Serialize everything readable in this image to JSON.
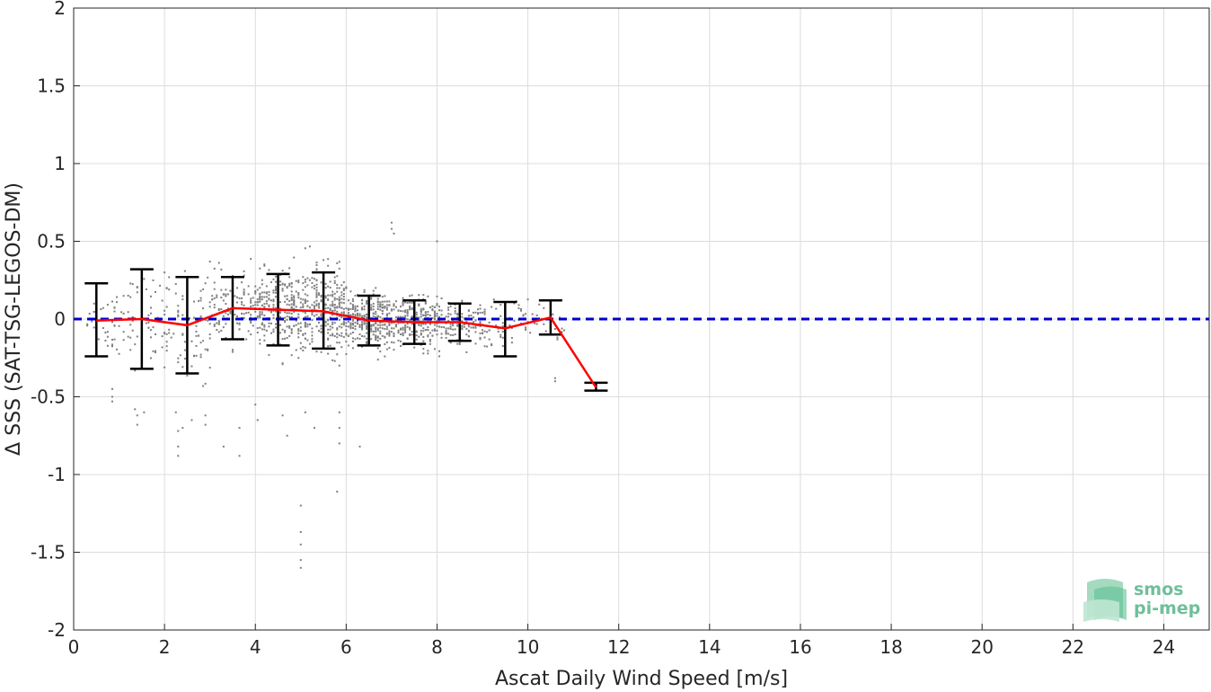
{
  "chart_data": {
    "type": "scatter",
    "title": "",
    "xlabel": "Ascat Daily Wind Speed [m/s]",
    "ylabel": "Δ SSS (SAT-TSG-LEGOS-DM)",
    "xlim": [
      0,
      25
    ],
    "ylim": [
      -2,
      2
    ],
    "xticks": [
      0,
      2,
      4,
      6,
      8,
      10,
      12,
      14,
      16,
      18,
      20,
      22,
      24
    ],
    "yticks": [
      2,
      1.5,
      1,
      0.5,
      0,
      -0.5,
      -1,
      -1.5,
      -2
    ],
    "ytick_labels": [
      "2",
      "1.5",
      "1",
      "0.5",
      "0",
      "-0.5",
      "-1",
      "-1.5",
      "-2"
    ],
    "grid": true,
    "reference_line": {
      "y": 0,
      "color": "#0000cc",
      "style": "dashed"
    },
    "bin_mean": {
      "color": "#ff0000",
      "x": [
        0.5,
        1.5,
        2.5,
        3.5,
        4.5,
        5.5,
        6.5,
        7.5,
        8.5,
        9.5,
        10.5,
        11.5
      ],
      "y": [
        -0.01,
        0.0,
        -0.04,
        0.07,
        0.06,
        0.05,
        -0.01,
        -0.02,
        -0.02,
        -0.06,
        0.01,
        -0.44
      ]
    },
    "error_bars": {
      "color": "#000000",
      "x": [
        0.5,
        1.5,
        2.5,
        3.5,
        4.5,
        5.5,
        6.5,
        7.5,
        8.5,
        9.5,
        10.5,
        11.5
      ],
      "upper": [
        0.23,
        0.32,
        0.27,
        0.27,
        0.29,
        0.3,
        0.15,
        0.12,
        0.1,
        0.11,
        0.12,
        -0.41
      ],
      "lower": [
        -0.24,
        -0.32,
        -0.35,
        -0.13,
        -0.17,
        -0.19,
        -0.17,
        -0.16,
        -0.14,
        -0.24,
        -0.1,
        -0.46
      ]
    },
    "scatter_points": {
      "color": "#808080",
      "description_bins": [
        {
          "x_range": [
            0.3,
            1.0
          ],
          "y_center": 0.0,
          "y_spread": 0.2
        },
        {
          "x_range": [
            1.0,
            2.0
          ],
          "y_center": 0.0,
          "y_spread": 0.25
        },
        {
          "x_range": [
            2.0,
            3.0
          ],
          "y_center": -0.05,
          "y_spread": 0.3
        },
        {
          "x_range": [
            3.0,
            4.0
          ],
          "y_center": 0.07,
          "y_spread": 0.2
        },
        {
          "x_range": [
            4.0,
            5.0
          ],
          "y_center": 0.06,
          "y_spread": 0.22
        },
        {
          "x_range": [
            5.0,
            6.0
          ],
          "y_center": 0.05,
          "y_spread": 0.24
        },
        {
          "x_range": [
            6.0,
            7.0
          ],
          "y_center": -0.01,
          "y_spread": 0.16
        },
        {
          "x_range": [
            7.0,
            8.0
          ],
          "y_center": -0.02,
          "y_spread": 0.14
        },
        {
          "x_range": [
            8.0,
            9.0
          ],
          "y_center": -0.02,
          "y_spread": 0.12
        },
        {
          "x_range": [
            9.0,
            10.0
          ],
          "y_center": -0.06,
          "y_spread": 0.17
        },
        {
          "x_range": [
            10.0,
            10.9
          ],
          "y_center": 0.01,
          "y_spread": 0.11
        }
      ],
      "outliers": [
        [
          0.85,
          -0.45
        ],
        [
          0.85,
          -0.5
        ],
        [
          0.85,
          -0.53
        ],
        [
          1.35,
          -0.58
        ],
        [
          1.4,
          -0.62
        ],
        [
          1.4,
          -0.68
        ],
        [
          1.55,
          -0.6
        ],
        [
          2.25,
          -0.6
        ],
        [
          2.3,
          -0.72
        ],
        [
          2.3,
          -0.82
        ],
        [
          2.3,
          -0.88
        ],
        [
          2.4,
          -0.7
        ],
        [
          2.6,
          -0.65
        ],
        [
          2.9,
          -0.68
        ],
        [
          2.9,
          -0.62
        ],
        [
          3.3,
          -0.82
        ],
        [
          3.65,
          -0.88
        ],
        [
          3.65,
          -0.7
        ],
        [
          4.0,
          -0.55
        ],
        [
          4.05,
          -0.65
        ],
        [
          4.6,
          -0.62
        ],
        [
          4.7,
          -0.75
        ],
        [
          5.0,
          -1.2
        ],
        [
          5.0,
          -1.37
        ],
        [
          5.0,
          -1.45
        ],
        [
          5.0,
          -1.55
        ],
        [
          5.0,
          -1.6
        ],
        [
          5.1,
          -0.6
        ],
        [
          5.3,
          -0.7
        ],
        [
          5.8,
          -1.11
        ],
        [
          5.85,
          -0.8
        ],
        [
          5.85,
          -0.7
        ],
        [
          5.85,
          -0.6
        ],
        [
          6.3,
          -0.82
        ],
        [
          7.0,
          0.62
        ],
        [
          7.0,
          0.58
        ],
        [
          7.05,
          0.55
        ],
        [
          8.0,
          0.5
        ],
        [
          10.6,
          -0.38
        ],
        [
          10.6,
          -0.4
        ],
        [
          11.5,
          -0.42
        ],
        [
          11.5,
          -0.45
        ]
      ]
    }
  },
  "logo": {
    "line1": "smos",
    "line2": "pi-mep"
  }
}
